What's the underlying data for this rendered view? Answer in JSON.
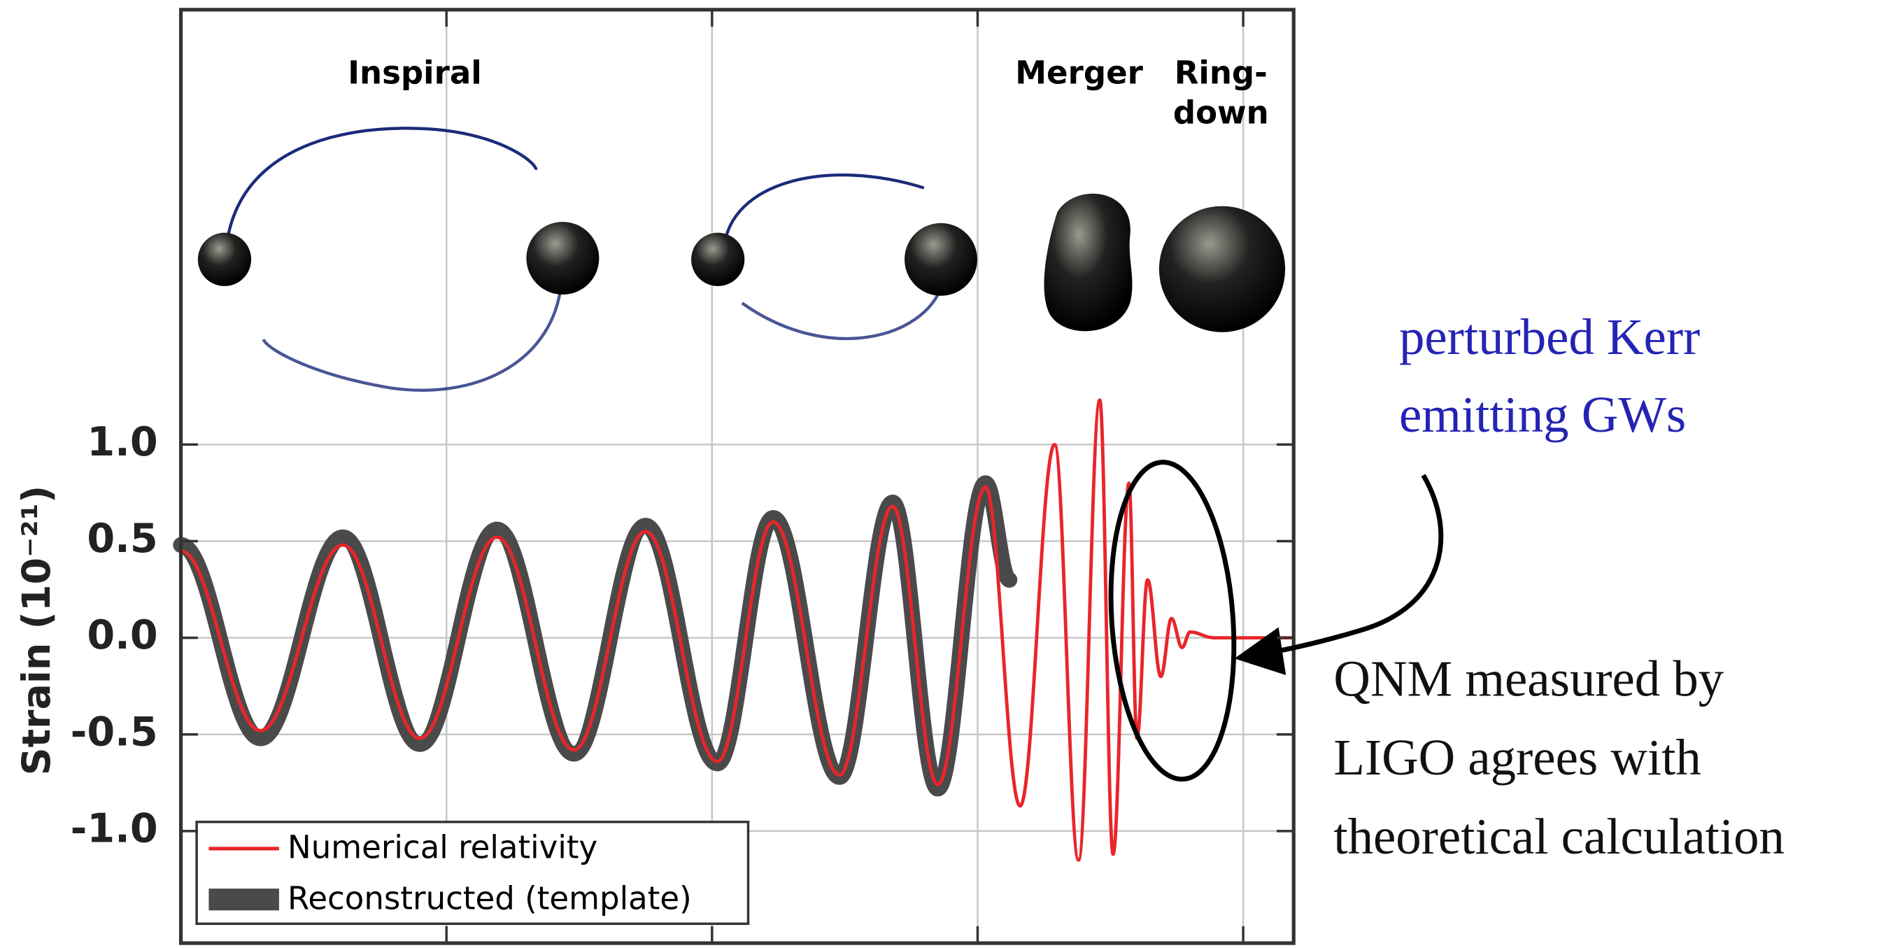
{
  "chart_data": {
    "type": "line",
    "ylabel": "Strain (10⁻²¹)",
    "phase_labels": [
      "Inspiral",
      "Merger",
      "Ring-",
      "down"
    ],
    "xlim": [
      0,
      4.19
    ],
    "xticks": [
      1,
      2,
      3,
      4
    ],
    "ylim": [
      -1.58,
      3.25
    ],
    "yticks": [
      {
        "value": 1,
        "label": "1.0"
      },
      0.5,
      {
        "value": 0,
        "label": "0.0"
      },
      -0.5,
      {
        "value": -1,
        "label": "-1.0"
      }
    ],
    "grid": true,
    "legend": "lower left",
    "series": [
      {
        "name": "Numerical relativity",
        "color": "#e8262b",
        "x": [
          0,
          0.3,
          0.61,
          0.9,
          1.19,
          1.48,
          1.75,
          2.02,
          2.23,
          2.48,
          2.68,
          2.85,
          3.03,
          3.16,
          3.29,
          3.38,
          3.46,
          3.51,
          3.57,
          3.6,
          3.64,
          3.69,
          3.73,
          3.77,
          3.8,
          3.89,
          4.19
        ],
        "values": [
          0.45,
          -0.48,
          0.48,
          -0.52,
          0.52,
          -0.58,
          0.55,
          -0.64,
          0.6,
          -0.71,
          0.68,
          -0.76,
          0.78,
          -0.87,
          1.0,
          -1.15,
          1.23,
          -1.12,
          0.8,
          -0.52,
          0.3,
          -0.2,
          0.1,
          -0.05,
          0.03,
          0,
          0
        ]
      },
      {
        "name": "Reconstructed (template)",
        "color": "#4a4a4a",
        "x": [
          0,
          0.3,
          0.61,
          0.9,
          1.19,
          1.48,
          1.75,
          2.02,
          2.23,
          2.48,
          2.68,
          2.85,
          3.03,
          3.12
        ],
        "values": [
          0.48,
          -0.52,
          0.52,
          -0.55,
          0.56,
          -0.6,
          0.58,
          -0.65,
          0.62,
          -0.72,
          0.7,
          -0.78,
          0.8,
          0.3
        ]
      }
    ]
  },
  "annotations": {
    "blue": [
      "perturbed Kerr",
      "emitting GWs"
    ],
    "black": [
      "QNM measured by",
      "LIGO agrees with",
      "theoretical calculation"
    ]
  }
}
